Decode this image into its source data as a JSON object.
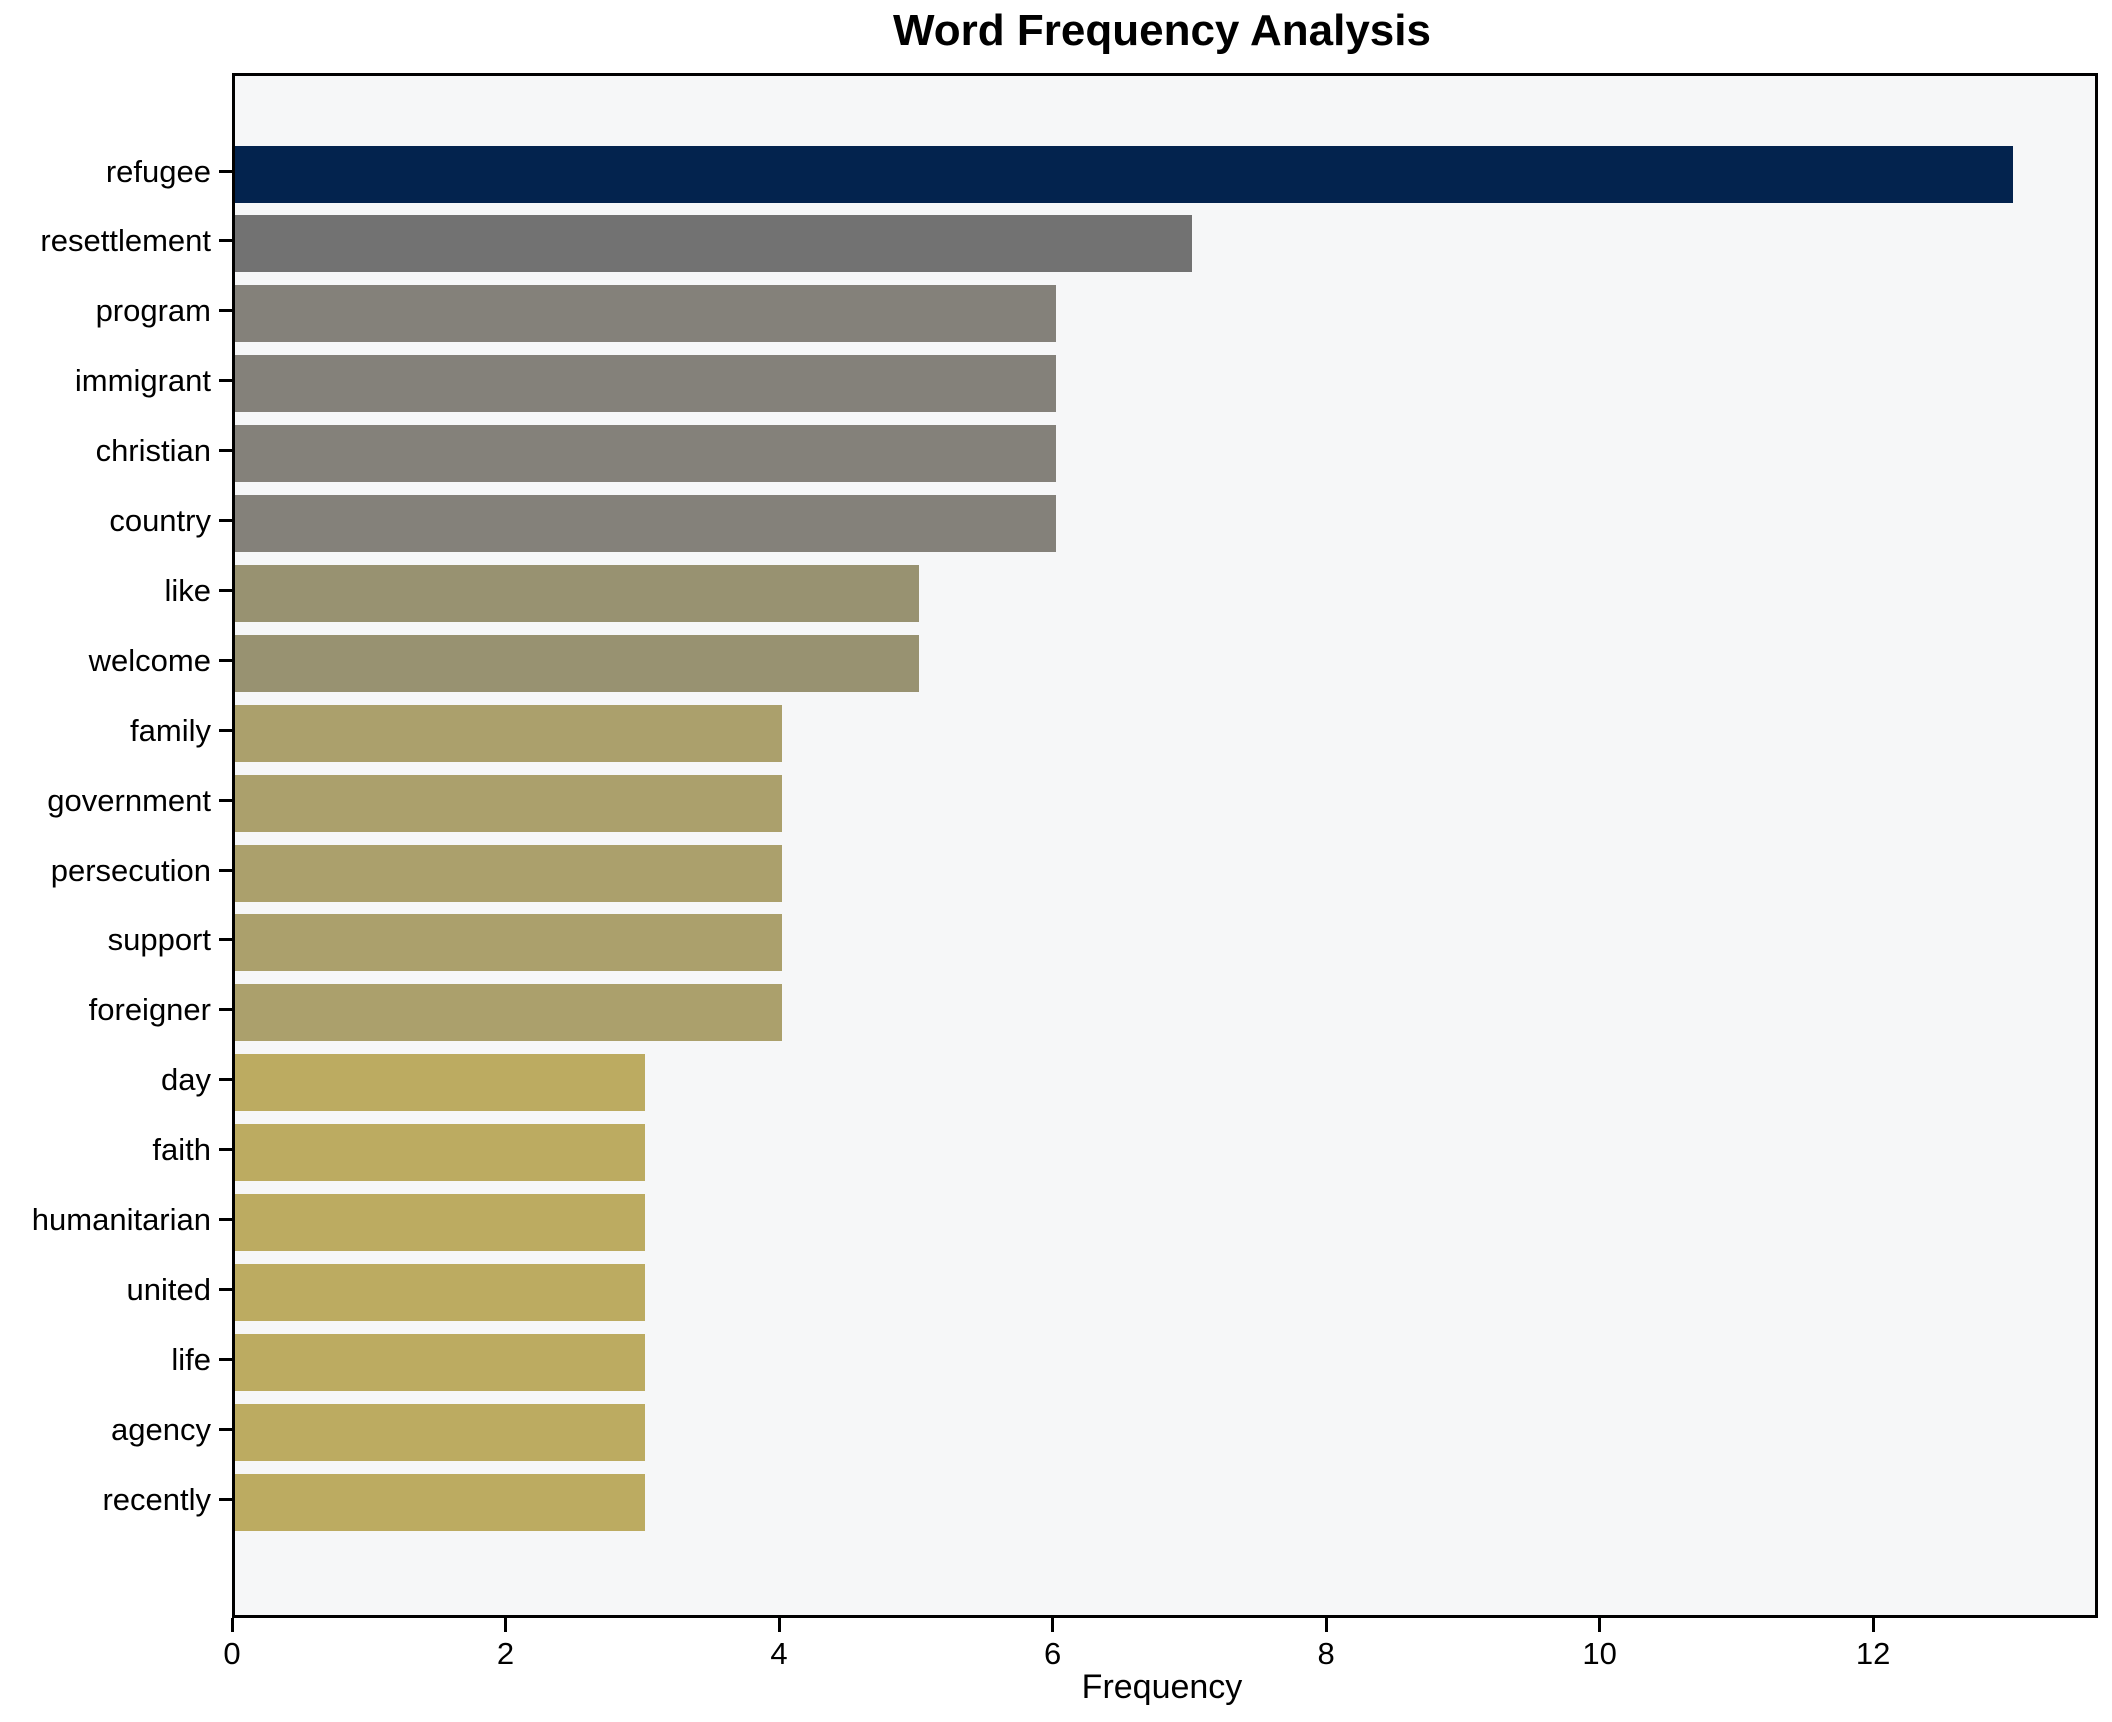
{
  "title": "Word Frequency Analysis",
  "chart_data": {
    "type": "bar",
    "orientation": "horizontal",
    "title": "Word Frequency Analysis",
    "xlabel": "Frequency",
    "ylabel": "",
    "categories": [
      "refugee",
      "resettlement",
      "program",
      "immigrant",
      "christian",
      "country",
      "like",
      "welcome",
      "family",
      "government",
      "persecution",
      "support",
      "foreigner",
      "day",
      "faith",
      "humanitarian",
      "united",
      "life",
      "agency",
      "recently"
    ],
    "values": [
      13,
      7,
      6,
      6,
      6,
      6,
      5,
      5,
      4,
      4,
      4,
      4,
      4,
      3,
      3,
      3,
      3,
      3,
      3,
      3
    ],
    "bar_colors": [
      "#03234e",
      "#727272",
      "#84817a",
      "#84817a",
      "#84817a",
      "#84817a",
      "#989271",
      "#989271",
      "#aba06c",
      "#aba06c",
      "#aba06c",
      "#aba06c",
      "#aba06c",
      "#bcab61",
      "#bcab61",
      "#bcab61",
      "#bcab61",
      "#bcab61",
      "#bcab61",
      "#bcab61"
    ],
    "xticks": [
      0,
      2,
      4,
      6,
      8,
      10,
      12
    ],
    "xlim": [
      0,
      13.6
    ],
    "grid": false,
    "legend": null,
    "plot_background": "#f6f7f8",
    "figure_background": "#ffffff",
    "spine_color": "#000000"
  }
}
